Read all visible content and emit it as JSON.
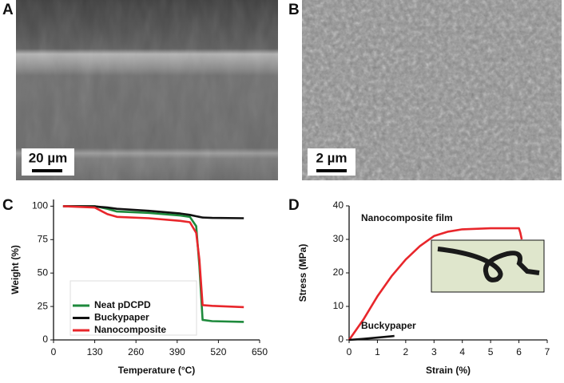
{
  "panels": [
    {
      "label": "A",
      "scale_bar": "20 µm"
    },
    {
      "label": "B",
      "scale_bar": "2 µm"
    }
  ],
  "chart_data": [
    {
      "type": "line",
      "label": "C",
      "x_label": "Temperature (°C)",
      "y_label": "Weight (%)",
      "x": [
        30,
        130,
        170,
        200,
        300,
        400,
        430,
        450,
        460,
        470,
        500,
        600
      ],
      "series": [
        {
          "name": "Neat pDCPD",
          "color": "#1e8a3c",
          "values": [
            100,
            100,
            98,
            96,
            95,
            93,
            92,
            85,
            55,
            15,
            14,
            13.5
          ]
        },
        {
          "name": "Buckypaper",
          "color": "#111111",
          "values": [
            100,
            99.8,
            99,
            98,
            96.5,
            94.5,
            93.5,
            92.5,
            92,
            91.5,
            91.2,
            91
          ]
        },
        {
          "name": "Nanocomposite",
          "color": "#e8262b",
          "values": [
            100,
            99,
            94,
            92,
            91,
            89,
            88,
            80,
            60,
            26,
            25.5,
            24.5
          ]
        }
      ],
      "xlim": [
        0,
        650
      ],
      "xticks": [
        0,
        130,
        260,
        390,
        520,
        650
      ],
      "ylim": [
        0,
        105
      ],
      "yticks": [
        0,
        25,
        50,
        75,
        100
      ],
      "legend": "lower left"
    },
    {
      "type": "line",
      "label": "D",
      "x_label": "Strain (%)",
      "y_label": "Stress (MPa)",
      "series": [
        {
          "name": "Nanocomposite film",
          "color": "#e8262b",
          "x": [
            0,
            0.5,
            1,
            1.5,
            2,
            2.5,
            3,
            3.5,
            4,
            5,
            6,
            6.05,
            6.1
          ],
          "values": [
            0,
            6,
            13,
            19,
            24,
            28,
            31,
            32.3,
            33,
            33.3,
            33.3,
            32,
            30
          ]
        },
        {
          "name": "Buckypaper",
          "color": "#111111",
          "x": [
            0,
            0.5,
            1,
            1.5,
            1.6
          ],
          "values": [
            0,
            0.3,
            0.7,
            1.1,
            1.2
          ]
        }
      ],
      "xlim": [
        0,
        7
      ],
      "xticks": [
        0,
        1,
        2,
        3,
        4,
        5,
        6,
        7
      ],
      "ylim": [
        0,
        40
      ],
      "yticks": [
        0,
        10,
        20,
        30,
        40
      ],
      "legend": "none"
    }
  ]
}
